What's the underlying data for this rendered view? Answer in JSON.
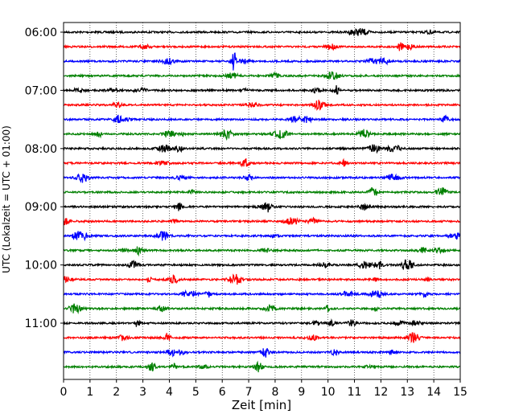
{
  "chart_data": {
    "type": "line",
    "title": "",
    "xlabel": "Zeit  [min]",
    "ylabel": "UTC (Lokalzeit = UTC + 01:00)",
    "xlim": [
      0,
      15
    ],
    "x_ticks": [
      "0",
      "1",
      "2",
      "3",
      "4",
      "5",
      "6",
      "7",
      "8",
      "9",
      "10",
      "11",
      "12",
      "13",
      "14",
      "15"
    ],
    "y_ticks": [
      "06:00",
      "07:00",
      "08:00",
      "09:00",
      "10:00",
      "11:00"
    ],
    "grid": "vertical dotted",
    "trace_interval_min": 15,
    "color_cycle": [
      "#000000",
      "#ff0000",
      "#0000ff",
      "#008000"
    ],
    "traces": [
      {
        "start": "06:00",
        "color": "#000000"
      },
      {
        "start": "06:15",
        "color": "#ff0000"
      },
      {
        "start": "06:30",
        "color": "#0000ff"
      },
      {
        "start": "06:45",
        "color": "#008000"
      },
      {
        "start": "07:00",
        "color": "#000000"
      },
      {
        "start": "07:15",
        "color": "#ff0000"
      },
      {
        "start": "07:30",
        "color": "#0000ff"
      },
      {
        "start": "07:45",
        "color": "#008000"
      },
      {
        "start": "08:00",
        "color": "#000000"
      },
      {
        "start": "08:15",
        "color": "#ff0000"
      },
      {
        "start": "08:30",
        "color": "#0000ff"
      },
      {
        "start": "08:45",
        "color": "#008000"
      },
      {
        "start": "09:00",
        "color": "#000000"
      },
      {
        "start": "09:15",
        "color": "#ff0000"
      },
      {
        "start": "09:30",
        "color": "#0000ff"
      },
      {
        "start": "09:45",
        "color": "#008000"
      },
      {
        "start": "10:00",
        "color": "#000000"
      },
      {
        "start": "10:15",
        "color": "#ff0000"
      },
      {
        "start": "10:30",
        "color": "#0000ff"
      },
      {
        "start": "10:45",
        "color": "#008000"
      },
      {
        "start": "11:00",
        "color": "#000000"
      },
      {
        "start": "11:15",
        "color": "#ff0000"
      },
      {
        "start": "11:30",
        "color": "#0000ff"
      },
      {
        "start": "11:45",
        "color": "#008000"
      }
    ]
  }
}
